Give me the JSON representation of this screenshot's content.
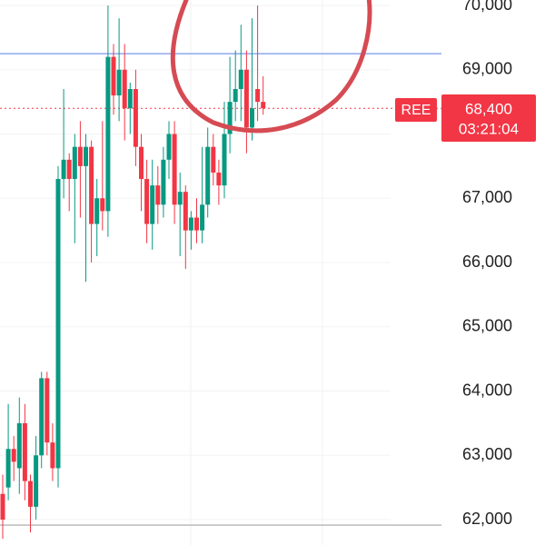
{
  "chart_data": {
    "type": "candlestick",
    "symbol_label": "REE",
    "countdown": "03:21:04",
    "last_price": {
      "value": 68400,
      "label": "68,400"
    },
    "up_color": "#089981",
    "down_color": "#f23645",
    "ylim": [
      61605,
      70085
    ],
    "yticks": [
      {
        "value": 62000,
        "label": "62,000"
      },
      {
        "value": 63000,
        "label": "63,000"
      },
      {
        "value": 64000,
        "label": "64,000"
      },
      {
        "value": 65000,
        "label": "65,000"
      },
      {
        "value": 66000,
        "label": "66,000"
      },
      {
        "value": 67000,
        "label": "67,000"
      },
      {
        "value": 68000,
        "label": "68,000"
      },
      {
        "value": 69000,
        "label": "69,000"
      },
      {
        "value": 70000,
        "label": "70,000"
      }
    ],
    "horizontal_lines": [
      {
        "value": 69250,
        "color": "#8fa8ee"
      },
      {
        "value": 61915,
        "color": "#bbbbbb"
      }
    ],
    "open": [
      62400,
      62500,
      63100,
      62800,
      63500,
      62600,
      62200,
      63000,
      64200,
      63200,
      62800,
      67300,
      67600,
      67300,
      67800,
      67500,
      67800,
      66600,
      67000,
      66800,
      69200,
      68600,
      69000,
      68400,
      68700,
      67800,
      67300,
      66600,
      67200,
      66900,
      67600,
      68000,
      66900,
      67100,
      66500,
      66700,
      66500,
      66900,
      67800,
      67400,
      67200,
      68000,
      68500,
      68700,
      69000,
      68100,
      68700,
      68500
    ],
    "high": [
      62700,
      63800,
      63300,
      63900,
      63800,
      62700,
      63300,
      64300,
      64300,
      63500,
      67500,
      68700,
      67700,
      68000,
      68200,
      68000,
      67900,
      67300,
      68200,
      70000,
      69400,
      69800,
      69400,
      68800,
      69000,
      68000,
      67600,
      67600,
      67500,
      67800,
      68200,
      68200,
      67400,
      67200,
      66800,
      67000,
      67800,
      68100,
      68000,
      67600,
      68500,
      69200,
      69300,
      69700,
      69300,
      69800,
      70000,
      68900
    ],
    "low": [
      61700,
      62300,
      62600,
      62400,
      62300,
      61800,
      62000,
      62800,
      63000,
      62600,
      62500,
      67000,
      66800,
      66300,
      66700,
      65700,
      66000,
      66100,
      66500,
      66400,
      68300,
      68200,
      67900,
      68000,
      67500,
      66800,
      66300,
      66200,
      66600,
      66700,
      67300,
      66600,
      66100,
      65900,
      66200,
      66300,
      66300,
      66700,
      67200,
      66900,
      67000,
      67700,
      68200,
      68200,
      67700,
      67900,
      68200,
      68300
    ],
    "close": [
      62000,
      63100,
      62900,
      63500,
      62600,
      62200,
      63000,
      64200,
      63200,
      62800,
      67300,
      67600,
      67300,
      67800,
      67500,
      67800,
      66600,
      67000,
      66800,
      69200,
      68600,
      69000,
      68400,
      68700,
      67800,
      67300,
      66600,
      67200,
      66900,
      67600,
      68000,
      66900,
      67100,
      66500,
      66700,
      66500,
      66900,
      67800,
      67400,
      67200,
      68000,
      68500,
      68700,
      69000,
      68100,
      68400,
      68500,
      68400
    ]
  }
}
